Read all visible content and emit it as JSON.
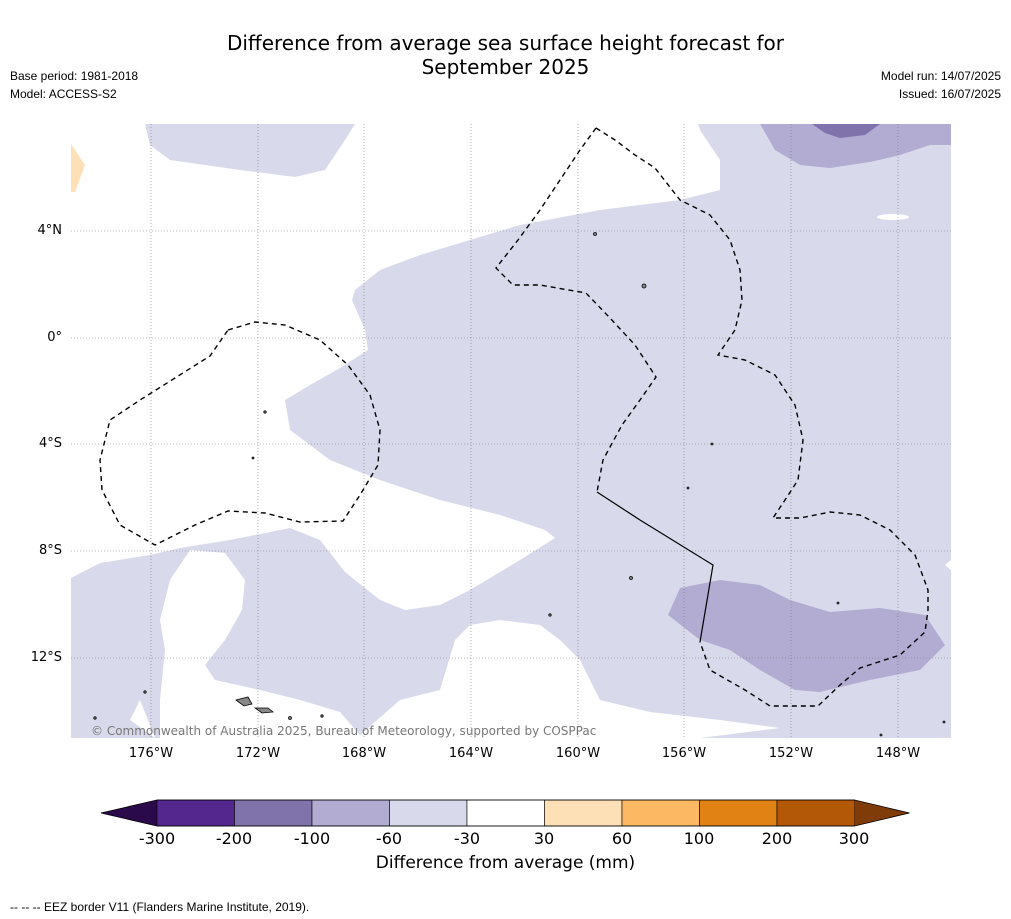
{
  "title": "Difference from average sea surface height forecast for September 2025",
  "title_lines": [
    "Difference from average sea surface height forecast for",
    "September 2025"
  ],
  "meta_left": [
    "Base period: 1981-2018",
    "Model: ACCESS-S2"
  ],
  "meta_right": [
    "Model run: 14/07/2025",
    "Issued: 16/07/2025"
  ],
  "lat_labels": [
    "4°N",
    "0°",
    "4°S",
    "8°S",
    "12°S"
  ],
  "lon_labels": [
    "176°W",
    "172°W",
    "168°W",
    "164°W",
    "160°W",
    "156°W",
    "152°W",
    "148°W"
  ],
  "copyright": "© Commonwealth of Australia 2025, Bureau of Meteorology, supported by COSPPac",
  "colorbar": {
    "ticks": [
      "-300",
      "-200",
      "-100",
      "-60",
      "-30",
      "30",
      "60",
      "100",
      "200",
      "300"
    ],
    "colors": [
      "#2a0a4a",
      "#54278f",
      "#8073ac",
      "#b2abd2",
      "#d8daeb",
      "#ffffff",
      "#fee0b6",
      "#fdb863",
      "#e08214",
      "#b35806",
      "#7f3b08"
    ],
    "label": "Difference from average (mm)"
  },
  "footnote": "--  --  -- EEZ border V11 (Flanders Marine Institute, 2019)."
}
